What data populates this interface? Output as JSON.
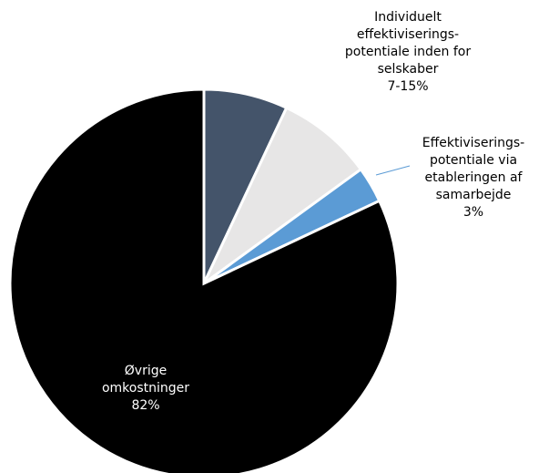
{
  "chart_data": {
    "type": "pie",
    "categories": [
      null,
      null,
      "Effektiviserings-potentiale via etableringen af samarbejde",
      "Øvrige omkostninger"
    ],
    "values": [
      7,
      8,
      3,
      82
    ],
    "value_labels": [
      null,
      null,
      "3%",
      "82%"
    ],
    "colors": [
      "#44546a",
      "#e7e6e6",
      "#5b9bd5",
      "#000000"
    ],
    "label_colors": [
      "#000000",
      "#000000",
      "#000000",
      "#ffffff"
    ],
    "annotations": [
      {
        "text": "Individuelt effektiviserings-potentiale inden for selskaber",
        "label": "7-15%"
      }
    ]
  }
}
